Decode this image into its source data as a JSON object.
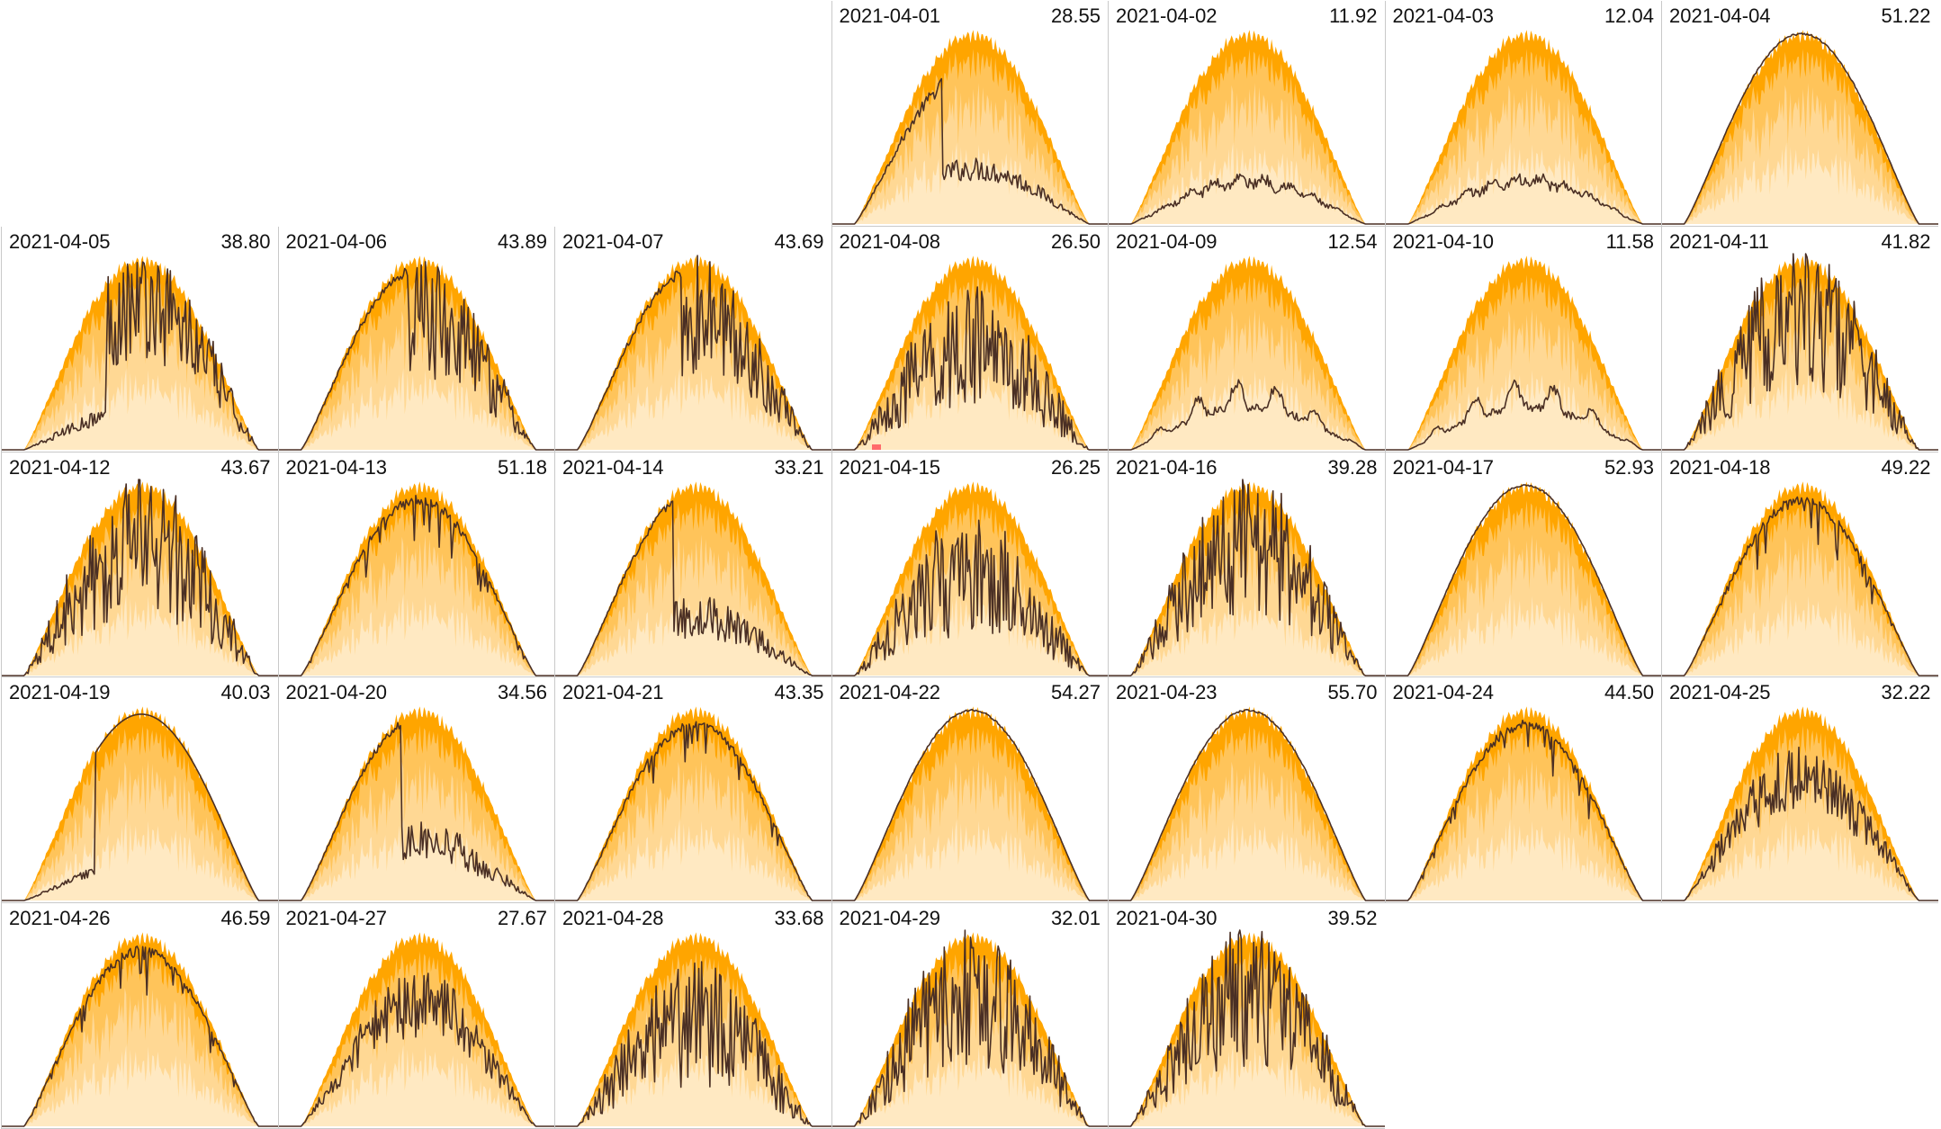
{
  "chart_data": {
    "type": "area",
    "layout": "calendar-grid",
    "month": "2021-04",
    "columns": 7,
    "first_weekday_column": 4,
    "colors": {
      "band_outer": "#ffa500",
      "band_mid": "#ffc45a",
      "band_inner": "#ffd894",
      "band_base": "#ffe9c2",
      "actual_line": "#4a2f24",
      "frame": "#c9c9c9",
      "marker": "#ff6b6b"
    },
    "days": [
      {
        "date": "2021-04-01",
        "total": "28.55",
        "profile": "morning-peak-then-cloudy"
      },
      {
        "date": "2021-04-02",
        "total": "11.92",
        "profile": "overcast"
      },
      {
        "date": "2021-04-03",
        "total": "12.04",
        "profile": "overcast"
      },
      {
        "date": "2021-04-04",
        "total": "51.22",
        "profile": "clear"
      },
      {
        "date": "2021-04-05",
        "total": "38.80",
        "profile": "late-start-spiky"
      },
      {
        "date": "2021-04-06",
        "total": "43.89",
        "profile": "clear-morning-spiky-afternoon"
      },
      {
        "date": "2021-04-07",
        "total": "43.69",
        "profile": "clear-morning-spiky-afternoon"
      },
      {
        "date": "2021-04-08",
        "total": "26.50",
        "profile": "spiky-mixed"
      },
      {
        "date": "2021-04-09",
        "total": "12.54",
        "profile": "overcast-bumpy"
      },
      {
        "date": "2021-04-10",
        "total": "11.58",
        "profile": "overcast-bumpy"
      },
      {
        "date": "2021-04-11",
        "total": "41.82",
        "profile": "spiky-high"
      },
      {
        "date": "2021-04-12",
        "total": "43.67",
        "profile": "spiky-high"
      },
      {
        "date": "2021-04-13",
        "total": "51.18",
        "profile": "clear-slight-noise"
      },
      {
        "date": "2021-04-14",
        "total": "33.21",
        "profile": "clear-morning-then-cloudy"
      },
      {
        "date": "2021-04-15",
        "total": "26.25",
        "profile": "spiky-mixed"
      },
      {
        "date": "2021-04-16",
        "total": "39.28",
        "profile": "spiky-high"
      },
      {
        "date": "2021-04-17",
        "total": "52.93",
        "profile": "clear"
      },
      {
        "date": "2021-04-18",
        "total": "49.22",
        "profile": "clear-slight-noise"
      },
      {
        "date": "2021-04-19",
        "total": "40.03",
        "profile": "late-start-clear"
      },
      {
        "date": "2021-04-20",
        "total": "34.56",
        "profile": "clear-morning-then-cloudy"
      },
      {
        "date": "2021-04-21",
        "total": "43.35",
        "profile": "clear-slight-noise"
      },
      {
        "date": "2021-04-22",
        "total": "54.27",
        "profile": "clear"
      },
      {
        "date": "2021-04-23",
        "total": "55.70",
        "profile": "clear"
      },
      {
        "date": "2021-04-24",
        "total": "44.50",
        "profile": "clear-slight-noise"
      },
      {
        "date": "2021-04-25",
        "total": "32.22",
        "profile": "mixed-moderate"
      },
      {
        "date": "2021-04-26",
        "total": "46.59",
        "profile": "clear-slight-noise"
      },
      {
        "date": "2021-04-27",
        "total": "27.67",
        "profile": "mixed-moderate"
      },
      {
        "date": "2021-04-28",
        "total": "33.68",
        "profile": "spiky-mixed"
      },
      {
        "date": "2021-04-29",
        "total": "32.01",
        "profile": "spiky-high"
      },
      {
        "date": "2021-04-30",
        "total": "39.52",
        "profile": "spiky-high"
      }
    ]
  }
}
